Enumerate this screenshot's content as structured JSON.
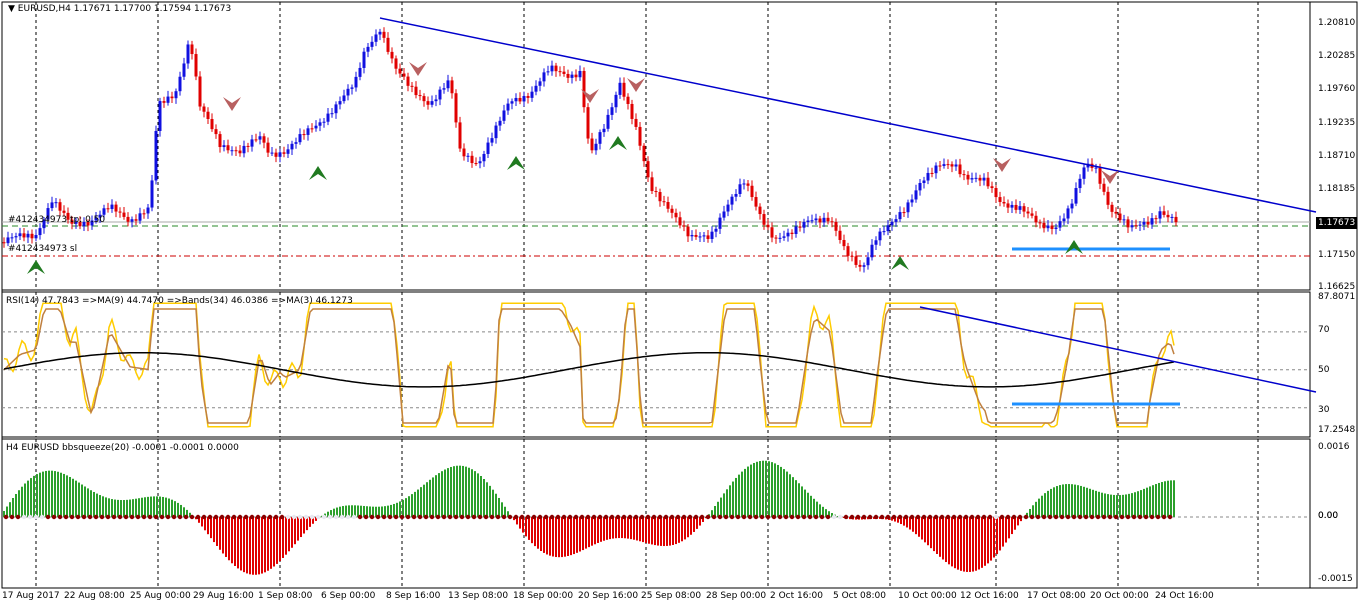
{
  "main_pane": {
    "header": "EURUSD,H4  1.17671 1.17700 1.17594 1.17673",
    "current_price": "1.17673",
    "order_label_tp": "#412434973 tp: 0.50",
    "order_label_sl": "#412434973 sl",
    "price_ticks": [
      "1.20810",
      "1.20285",
      "1.19760",
      "1.19235",
      "1.18710",
      "1.18185",
      "1.17673",
      "1.17150",
      "1.16625"
    ]
  },
  "rsi_pane": {
    "header": "RSI(14) 47.7843  =>MA(9) 44.7470  =>Bands(34) 46.0386  =>MA(3) 46.1273",
    "ticks": [
      "87.8071",
      "70",
      "50",
      "30",
      "17.2548"
    ]
  },
  "squeeze_pane": {
    "header": "H4 EURUSD bbsqueeze(20) -0.0001 -0.0001 0.0000",
    "ticks": [
      "0.0016",
      "0.00",
      "0.00",
      "-0.0015"
    ]
  },
  "time_axis": [
    "17 Aug 2017",
    "22 Aug 08:00",
    "25 Aug 00:00",
    "29 Aug 16:00",
    "1 Sep 08:00",
    "6 Sep 00:00",
    "8 Sep 16:00",
    "13 Sep 08:00",
    "18 Sep 00:00",
    "20 Sep 16:00",
    "25 Sep 08:00",
    "28 Sep 00:00",
    "2 Oct 16:00",
    "5 Oct 08:00",
    "10 Oct 00:00",
    "12 Oct 16:00",
    "17 Oct 08:00",
    "20 Oct 00:00",
    "24 Oct 16:00"
  ],
  "colors": {
    "bull": "#1010e0",
    "bear": "#e00000",
    "trendline": "#0000cc",
    "support": "#1e90ff",
    "grid": "#000000",
    "rsi_fast": "#ffcc00",
    "rsi_slow": "#c08040",
    "rsi_band": "#000000",
    "sq_pos": "#2ca02c",
    "sq_neg": "#e00000",
    "sq_neg2": "#ffa500"
  }
}
